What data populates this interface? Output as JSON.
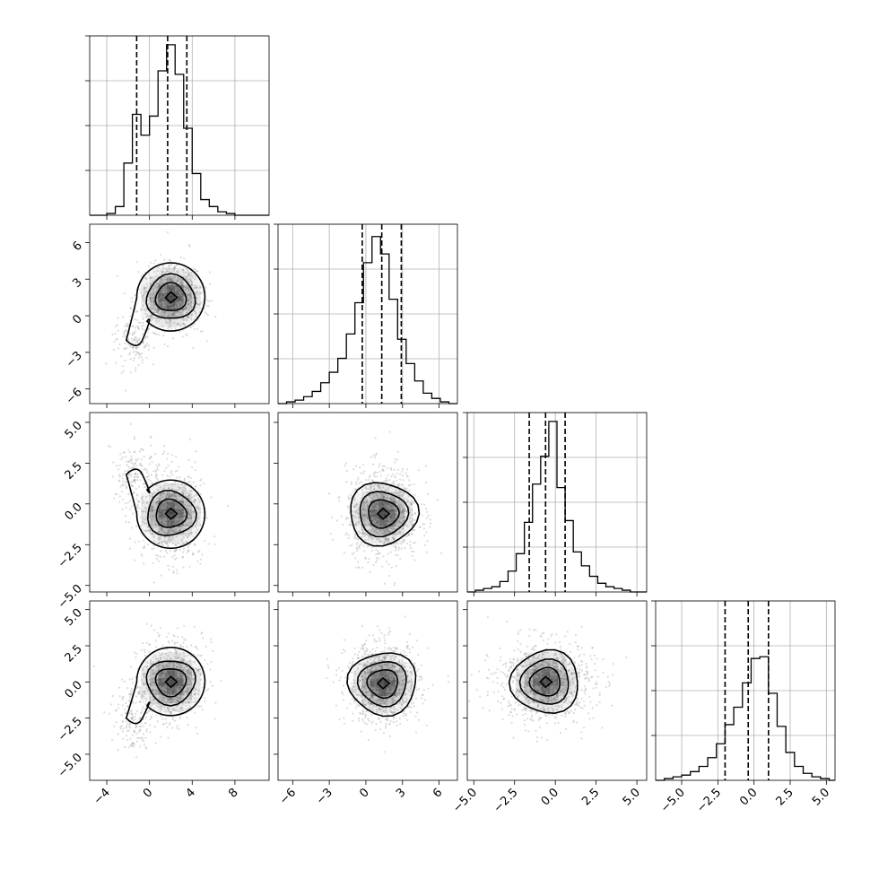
{
  "chart_data": {
    "type": "corner",
    "title": "",
    "ndim": 4,
    "colors": {
      "line": "#000000",
      "grid": "#b0b0b0",
      "points": "#9a9a9a",
      "density": "#000000"
    },
    "grid": true,
    "axis_labels": [
      "",
      "",
      "",
      ""
    ],
    "ranges": [
      [
        -5.6,
        11.2
      ],
      [
        -7.2,
        7.5
      ],
      [
        -5.4,
        5.6
      ],
      [
        -6.8,
        5.6
      ]
    ],
    "ticks": [
      {
        "values": [
          -4,
          0,
          4,
          8
        ],
        "labels": [
          "−4",
          "0",
          "4",
          "8"
        ]
      },
      {
        "values": [
          -6,
          -3,
          0,
          3,
          6
        ],
        "labels": [
          "−6",
          "−3",
          "0",
          "3",
          "6"
        ]
      },
      {
        "values": [
          -5,
          -2.5,
          0,
          2.5,
          5
        ],
        "labels": [
          "−5.0",
          "−2.5",
          "0.0",
          "2.5",
          "5.0"
        ]
      },
      {
        "values": [
          -5,
          -2.5,
          0,
          2.5,
          5
        ],
        "labels": [
          "−5.0",
          "−2.5",
          "0.0",
          "2.5",
          "5.0"
        ]
      }
    ],
    "quantiles": [
      [
        -1.2,
        1.7,
        3.5
      ],
      [
        -0.3,
        1.3,
        2.9
      ],
      [
        -1.6,
        -0.6,
        0.6
      ],
      [
        -2.0,
        -0.4,
        1.0
      ]
    ],
    "histograms": [
      {
        "edges": [
          -5.6,
          -4.8,
          -4.0,
          -3.2,
          -2.4,
          -1.6,
          -0.8,
          0.0,
          0.8,
          1.6,
          2.4,
          3.2,
          4.0,
          4.8,
          5.6,
          6.4,
          7.2,
          8.0,
          8.8,
          9.6,
          10.4,
          11.2
        ],
        "counts": [
          0,
          0,
          0.01,
          0.05,
          0.3,
          0.58,
          0.46,
          0.57,
          0.83,
          0.98,
          0.81,
          0.5,
          0.24,
          0.09,
          0.05,
          0.02,
          0.01,
          0,
          0,
          0,
          0
        ]
      },
      {
        "edges": [
          -7.2,
          -6.5,
          -5.8,
          -5.1,
          -4.4,
          -3.7,
          -3.0,
          -2.3,
          -1.6,
          -0.9,
          -0.2,
          0.5,
          1.2,
          1.9,
          2.6,
          3.3,
          4.0,
          4.7,
          5.4,
          6.1,
          6.8,
          7.5
        ],
        "counts": [
          0,
          0.01,
          0.02,
          0.04,
          0.07,
          0.12,
          0.18,
          0.26,
          0.4,
          0.58,
          0.81,
          0.96,
          0.86,
          0.6,
          0.37,
          0.23,
          0.13,
          0.06,
          0.03,
          0.01,
          0
        ]
      },
      {
        "edges": [
          -5.4,
          -4.9,
          -4.4,
          -3.9,
          -3.4,
          -2.9,
          -2.4,
          -1.9,
          -1.4,
          -0.9,
          -0.4,
          0.1,
          0.6,
          1.1,
          1.6,
          2.1,
          2.6,
          3.1,
          3.6,
          4.1,
          4.6,
          5.1,
          5.6
        ],
        "counts": [
          0,
          0.01,
          0.02,
          0.03,
          0.06,
          0.12,
          0.22,
          0.4,
          0.62,
          0.78,
          0.98,
          0.6,
          0.41,
          0.23,
          0.15,
          0.09,
          0.05,
          0.03,
          0.02,
          0.01,
          0,
          0
        ]
      },
      {
        "edges": [
          -6.8,
          -6.2,
          -5.6,
          -5.0,
          -4.4,
          -3.8,
          -3.2,
          -2.6,
          -2.0,
          -1.4,
          -0.8,
          -0.2,
          0.4,
          1.0,
          1.6,
          2.2,
          2.8,
          3.4,
          4.0,
          4.6,
          5.2,
          5.6
        ],
        "counts": [
          0,
          0.01,
          0.02,
          0.03,
          0.05,
          0.08,
          0.13,
          0.21,
          0.32,
          0.42,
          0.56,
          0.7,
          0.71,
          0.5,
          0.31,
          0.16,
          0.08,
          0.04,
          0.02,
          0.01,
          0
        ]
      }
    ],
    "pairs": [
      {
        "x": 0,
        "y": 1,
        "peak": [
          2.0,
          1.5
        ],
        "tail": [
          -1.5,
          -2.0
        ]
      },
      {
        "x": 0,
        "y": 2,
        "peak": [
          2.0,
          -0.6
        ],
        "tail": [
          -1.5,
          1.8
        ]
      },
      {
        "x": 1,
        "y": 2,
        "peak": [
          1.4,
          -0.6
        ],
        "tail": null
      },
      {
        "x": 0,
        "y": 3,
        "peak": [
          2.0,
          0.0
        ],
        "tail": [
          -1.5,
          -2.5
        ]
      },
      {
        "x": 1,
        "y": 3,
        "peak": [
          1.4,
          -0.1
        ],
        "tail": null
      },
      {
        "x": 2,
        "y": 3,
        "peak": [
          -0.6,
          0.0
        ],
        "tail": null
      }
    ]
  }
}
